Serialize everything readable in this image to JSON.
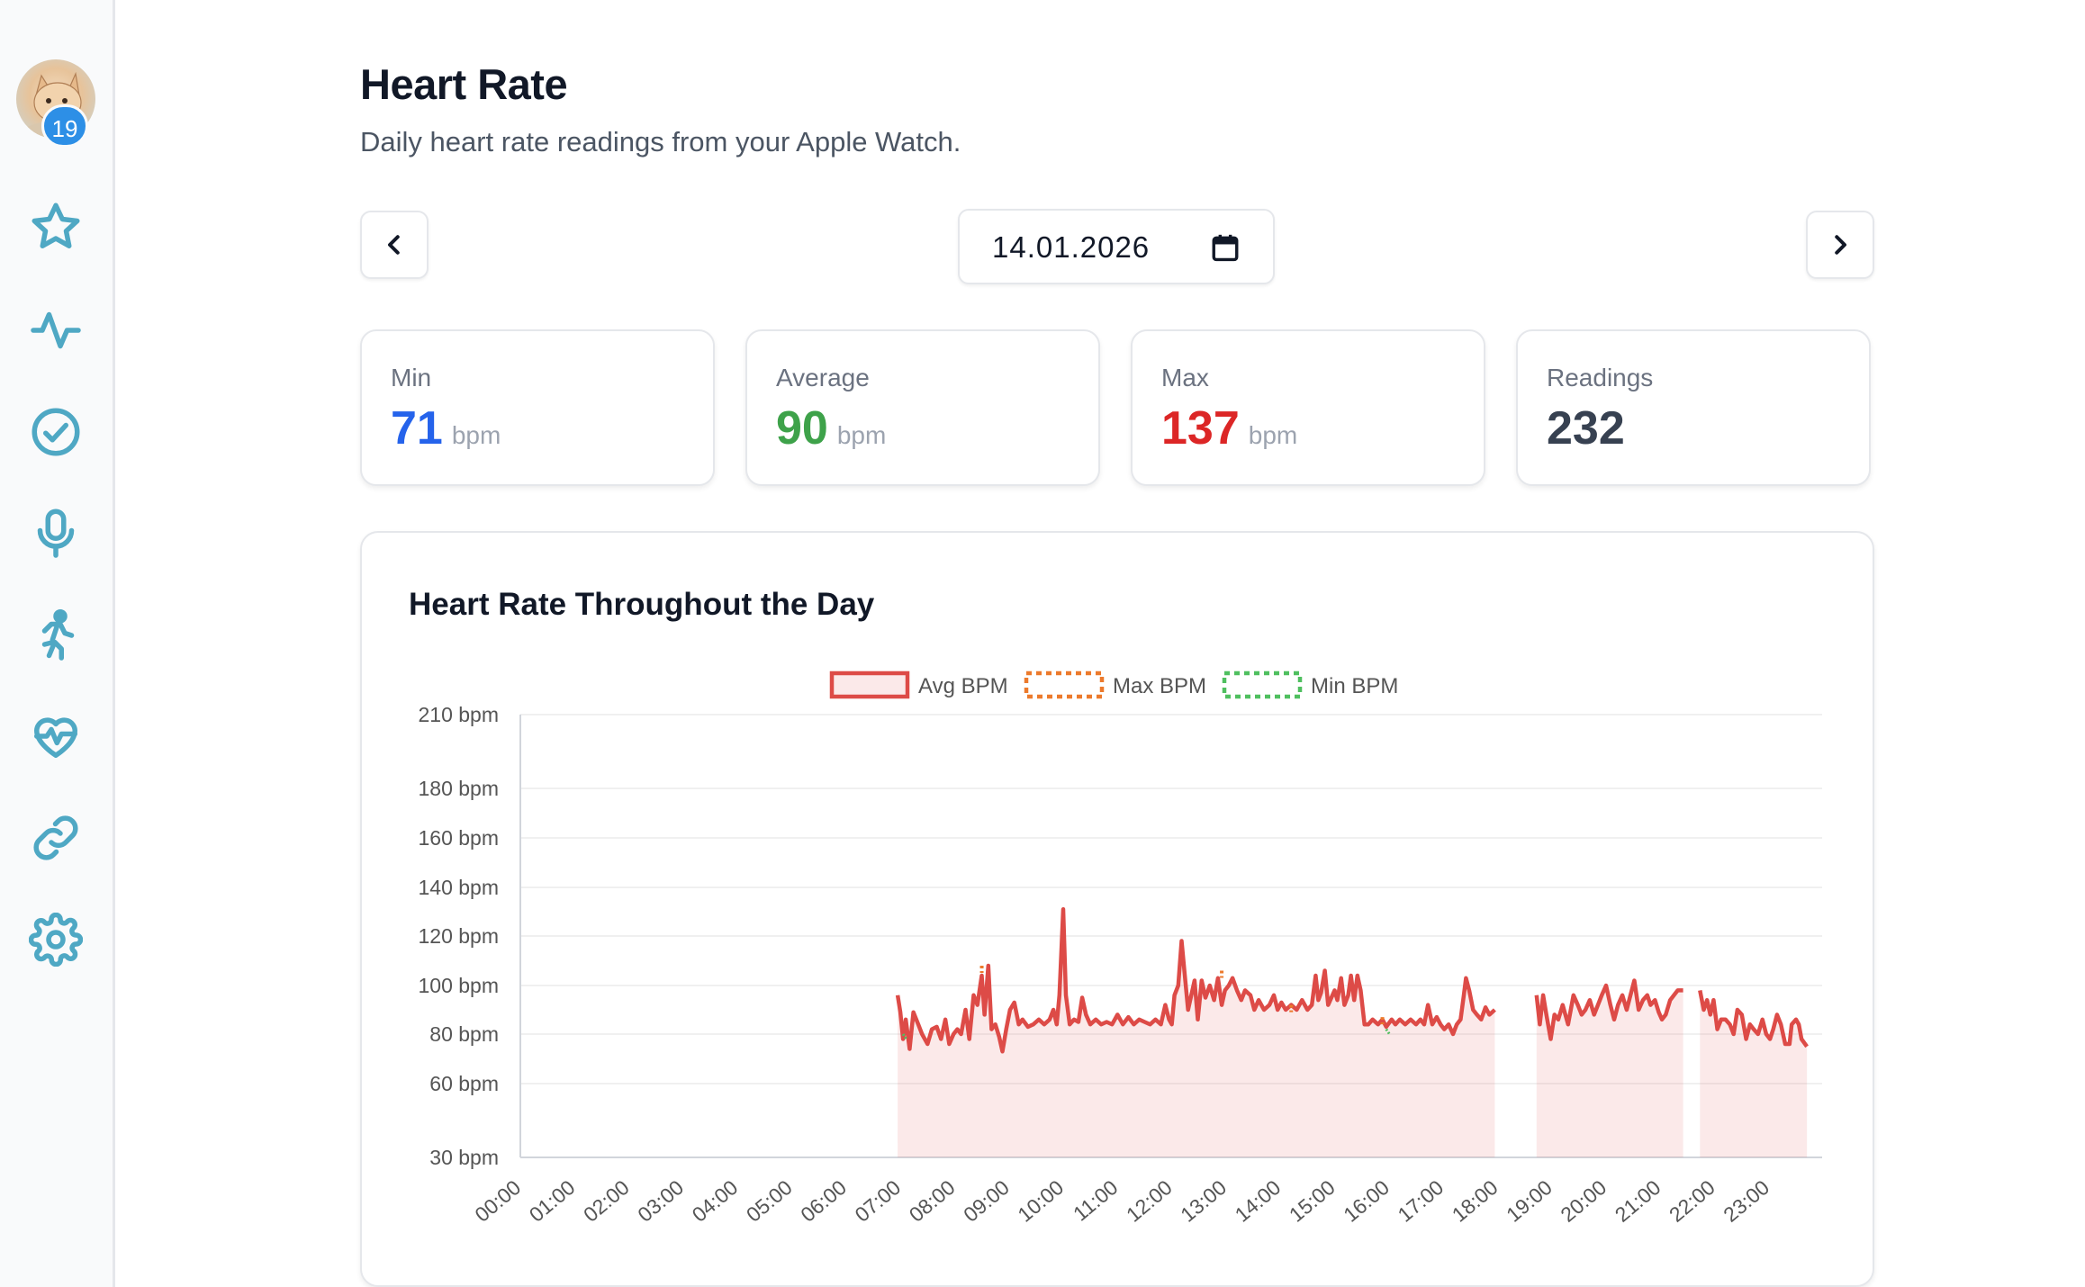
{
  "sidebar": {
    "avatar_badge": "19",
    "icons": [
      "star-icon",
      "activity-icon",
      "check-circle-icon",
      "microphone-icon",
      "running-icon",
      "heart-pulse-icon",
      "link-icon",
      "gear-icon"
    ]
  },
  "header": {
    "title": "Heart Rate",
    "subtitle": "Daily heart rate readings from your Apple Watch."
  },
  "date_nav": {
    "date": "14.01.2026",
    "prev_icon": "chevron-left-icon",
    "next_icon": "chevron-right-icon",
    "calendar_icon": "calendar-icon"
  },
  "stats": [
    {
      "label": "Min",
      "value": "71",
      "unit": "bpm",
      "color": "#2563eb"
    },
    {
      "label": "Average",
      "value": "90",
      "unit": "bpm",
      "color": "#3ea24a"
    },
    {
      "label": "Max",
      "value": "137",
      "unit": "bpm",
      "color": "#dc2626"
    },
    {
      "label": "Readings",
      "value": "232",
      "unit": "",
      "color": "#374151"
    }
  ],
  "chart": {
    "title": "Heart Rate Throughout the Day"
  },
  "chart_data": {
    "type": "line",
    "legend": [
      "Avg BPM",
      "Max BPM",
      "Min BPM"
    ],
    "legend_position": "top-center",
    "series_colors": {
      "avg": "#dd4b47",
      "max": "#ec7a2c",
      "min": "#4fbf5f"
    },
    "y_ticks": [
      30,
      60,
      80,
      100,
      120,
      140,
      160,
      180,
      210
    ],
    "y_tick_labels": [
      "30 bpm",
      "60 bpm",
      "80 bpm",
      "100 bpm",
      "120 bpm",
      "140 bpm",
      "160 bpm",
      "180 bpm",
      "210 bpm"
    ],
    "x_tick_labels": [
      "00:00",
      "01:00",
      "02:00",
      "03:00",
      "04:00",
      "05:00",
      "06:00",
      "07:00",
      "08:00",
      "09:00",
      "10:00",
      "11:00",
      "12:00",
      "13:00",
      "14:00",
      "15:00",
      "16:00",
      "17:00",
      "18:00",
      "19:00",
      "20:00",
      "21:00",
      "22:00",
      "23:00"
    ],
    "x_range_hours": [
      0,
      24
    ],
    "grid": true,
    "segments": [
      {
        "points": [
          [
            6.95,
            96
          ],
          [
            7.0,
            89
          ],
          [
            7.05,
            78
          ],
          [
            7.1,
            86
          ],
          [
            7.17,
            74
          ],
          [
            7.24,
            89
          ],
          [
            7.33,
            84
          ],
          [
            7.4,
            80
          ],
          [
            7.5,
            76
          ],
          [
            7.58,
            82
          ],
          [
            7.67,
            83
          ],
          [
            7.75,
            78
          ],
          [
            7.83,
            86
          ],
          [
            7.9,
            76
          ],
          [
            7.98,
            80
          ],
          [
            8.05,
            82
          ],
          [
            8.12,
            80
          ],
          [
            8.2,
            90
          ],
          [
            8.27,
            78
          ],
          [
            8.35,
            96
          ],
          [
            8.42,
            92
          ],
          [
            8.5,
            104
          ],
          [
            8.55,
            88
          ],
          [
            8.62,
            108
          ],
          [
            8.68,
            82
          ],
          [
            8.75,
            84
          ],
          [
            8.82,
            79
          ],
          [
            8.88,
            73
          ],
          [
            8.95,
            82
          ],
          [
            9.02,
            90
          ],
          [
            9.1,
            93
          ],
          [
            9.18,
            84
          ],
          [
            9.25,
            86
          ],
          [
            9.35,
            83
          ],
          [
            9.45,
            84
          ],
          [
            9.55,
            86
          ],
          [
            9.65,
            84
          ],
          [
            9.75,
            86
          ],
          [
            9.82,
            90
          ],
          [
            9.88,
            84
          ],
          [
            9.93,
            96
          ],
          [
            10.0,
            131
          ],
          [
            10.05,
            96
          ],
          [
            10.12,
            84
          ],
          [
            10.2,
            86
          ],
          [
            10.28,
            85
          ],
          [
            10.35,
            95
          ],
          [
            10.42,
            88
          ],
          [
            10.5,
            84
          ],
          [
            10.6,
            86
          ],
          [
            10.7,
            84
          ],
          [
            10.8,
            85
          ],
          [
            10.9,
            84
          ],
          [
            11.0,
            88
          ],
          [
            11.1,
            84
          ],
          [
            11.2,
            87
          ],
          [
            11.3,
            84
          ],
          [
            11.4,
            86
          ],
          [
            11.5,
            85
          ],
          [
            11.6,
            84
          ],
          [
            11.7,
            86
          ],
          [
            11.8,
            84
          ],
          [
            11.88,
            92
          ],
          [
            11.95,
            86
          ],
          [
            12.0,
            84
          ],
          [
            12.05,
            96
          ],
          [
            12.12,
            100
          ],
          [
            12.18,
            118
          ],
          [
            12.24,
            104
          ],
          [
            12.3,
            90
          ],
          [
            12.36,
            96
          ],
          [
            12.42,
            102
          ],
          [
            12.48,
            86
          ],
          [
            12.55,
            102
          ],
          [
            12.62,
            95
          ],
          [
            12.7,
            100
          ],
          [
            12.78,
            94
          ],
          [
            12.85,
            103
          ],
          [
            12.92,
            92
          ],
          [
            12.98,
            98
          ],
          [
            13.05,
            100
          ],
          [
            13.12,
            103
          ],
          [
            13.2,
            98
          ],
          [
            13.28,
            94
          ],
          [
            13.35,
            98
          ],
          [
            13.45,
            96
          ],
          [
            13.52,
            90
          ],
          [
            13.6,
            94
          ],
          [
            13.7,
            90
          ],
          [
            13.8,
            92
          ],
          [
            13.88,
            96
          ],
          [
            13.95,
            90
          ],
          [
            14.02,
            93
          ],
          [
            14.1,
            90
          ],
          [
            14.2,
            92
          ],
          [
            14.3,
            90
          ],
          [
            14.4,
            94
          ],
          [
            14.5,
            90
          ],
          [
            14.58,
            92
          ],
          [
            14.65,
            104
          ],
          [
            14.7,
            94
          ],
          [
            14.75,
            97
          ],
          [
            14.82,
            106
          ],
          [
            14.88,
            92
          ],
          [
            15.0,
            98
          ],
          [
            15.05,
            94
          ],
          [
            15.12,
            103
          ],
          [
            15.18,
            92
          ],
          [
            15.25,
            96
          ],
          [
            15.3,
            104
          ],
          [
            15.36,
            94
          ],
          [
            15.42,
            104
          ],
          [
            15.48,
            98
          ],
          [
            15.55,
            84
          ],
          [
            15.62,
            84
          ],
          [
            15.7,
            86
          ],
          [
            15.8,
            84
          ],
          [
            15.88,
            86
          ],
          [
            15.95,
            83
          ],
          [
            16.05,
            86
          ],
          [
            16.12,
            84
          ],
          [
            16.2,
            86
          ],
          [
            16.3,
            84
          ],
          [
            16.4,
            86
          ],
          [
            16.5,
            84
          ],
          [
            16.58,
            86
          ],
          [
            16.65,
            84
          ],
          [
            16.72,
            92
          ],
          [
            16.8,
            84
          ],
          [
            16.88,
            87
          ],
          [
            16.95,
            84
          ],
          [
            17.02,
            82
          ],
          [
            17.1,
            84
          ],
          [
            17.18,
            80
          ],
          [
            17.25,
            84
          ],
          [
            17.32,
            86
          ],
          [
            17.38,
            96
          ],
          [
            17.42,
            103
          ],
          [
            17.48,
            98
          ],
          [
            17.55,
            90
          ],
          [
            17.62,
            88
          ],
          [
            17.7,
            86
          ],
          [
            17.78,
            91
          ],
          [
            17.85,
            88
          ],
          [
            17.95,
            90
          ]
        ]
      },
      {
        "points": [
          [
            18.72,
            96
          ],
          [
            18.78,
            84
          ],
          [
            18.84,
            96
          ],
          [
            18.9,
            88
          ],
          [
            18.98,
            78
          ],
          [
            19.05,
            88
          ],
          [
            19.12,
            86
          ],
          [
            19.2,
            92
          ],
          [
            19.3,
            84
          ],
          [
            19.4,
            96
          ],
          [
            19.48,
            92
          ],
          [
            19.55,
            88
          ],
          [
            19.62,
            90
          ],
          [
            19.7,
            94
          ],
          [
            19.78,
            88
          ],
          [
            19.85,
            92
          ],
          [
            19.92,
            96
          ],
          [
            20.0,
            100
          ],
          [
            20.08,
            92
          ],
          [
            20.15,
            86
          ],
          [
            20.22,
            92
          ],
          [
            20.3,
            96
          ],
          [
            20.38,
            90
          ],
          [
            20.45,
            96
          ],
          [
            20.52,
            102
          ],
          [
            20.6,
            90
          ],
          [
            20.68,
            94
          ],
          [
            20.76,
            96
          ],
          [
            20.82,
            92
          ],
          [
            20.9,
            94
          ],
          [
            20.97,
            89
          ],
          [
            21.03,
            86
          ],
          [
            21.1,
            88
          ],
          [
            21.18,
            94
          ],
          [
            21.25,
            96
          ],
          [
            21.32,
            98
          ],
          [
            21.42,
            98
          ]
        ]
      },
      {
        "points": [
          [
            21.73,
            98
          ],
          [
            21.8,
            90
          ],
          [
            21.86,
            94
          ],
          [
            21.92,
            88
          ],
          [
            21.98,
            94
          ],
          [
            22.05,
            82
          ],
          [
            22.12,
            86
          ],
          [
            22.2,
            86
          ],
          [
            22.28,
            84
          ],
          [
            22.35,
            80
          ],
          [
            22.42,
            90
          ],
          [
            22.5,
            88
          ],
          [
            22.58,
            78
          ],
          [
            22.65,
            84
          ],
          [
            22.72,
            82
          ],
          [
            22.8,
            80
          ],
          [
            22.88,
            86
          ],
          [
            22.95,
            80
          ],
          [
            23.02,
            78
          ],
          [
            23.08,
            82
          ],
          [
            23.15,
            88
          ],
          [
            23.22,
            84
          ],
          [
            23.3,
            76
          ],
          [
            23.38,
            76
          ],
          [
            23.42,
            84
          ],
          [
            23.5,
            86
          ],
          [
            23.55,
            84
          ],
          [
            23.6,
            78
          ],
          [
            23.7,
            75
          ]
        ]
      }
    ],
    "max_markers": [
      [
        8.5,
        108
      ],
      [
        12.92,
        106
      ],
      [
        14.2,
        92
      ],
      [
        15.88,
        87
      ]
    ],
    "min_markers": [
      [
        7.05,
        80
      ],
      [
        15.95,
        82
      ]
    ]
  }
}
